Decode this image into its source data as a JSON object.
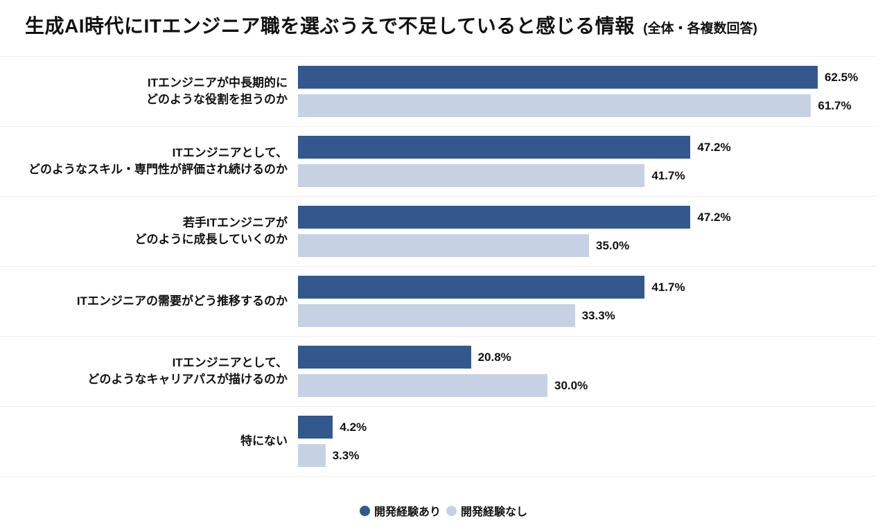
{
  "title": {
    "main": "生成AI時代にITエンジニア職を選ぶうえで不足していると感じる情報",
    "suffix": "(全体・各複数回答)"
  },
  "colors": {
    "series_dev_experience": "#32588E",
    "series_no_dev_experience": "#C6D2E4",
    "divider": "#ededed",
    "text": "#111111"
  },
  "legend": {
    "items": [
      {
        "label": "開発経験あり",
        "color": "#32588E"
      },
      {
        "label": "開発経験なし",
        "color": "#C6D2E4"
      }
    ]
  },
  "chart_data": {
    "type": "bar",
    "orientation": "horizontal",
    "unit": "%",
    "xlim": [
      0,
      70
    ],
    "grid": false,
    "legend_position": "bottom",
    "categories": [
      {
        "lines": [
          "ITエンジニアが中長期的に",
          "どのような役割を担うのか"
        ]
      },
      {
        "lines": [
          "ITエンジニアとして、",
          "どのようなスキル・専門性が評価され続けるのか"
        ]
      },
      {
        "lines": [
          "若手ITエンジニアが",
          "どのように成長していくのか"
        ]
      },
      {
        "lines": [
          "ITエンジニアの需要がどう推移するのか"
        ]
      },
      {
        "lines": [
          "ITエンジニアとして、",
          "どのようなキャリアパスが描けるのか"
        ]
      },
      {
        "lines": [
          "特にない"
        ]
      }
    ],
    "series": [
      {
        "name": "開発経験あり",
        "color": "#32588E",
        "values": [
          62.5,
          47.2,
          47.2,
          41.7,
          20.8,
          4.2
        ],
        "labels": [
          "62.5%",
          "47.2%",
          "47.2%",
          "41.7%",
          "20.8%",
          "4.2%"
        ]
      },
      {
        "name": "開発経験なし",
        "color": "#C6D2E4",
        "values": [
          61.7,
          41.7,
          35.0,
          33.3,
          30.0,
          3.3
        ],
        "labels": [
          "61.7%",
          "41.7%",
          "35.0%",
          "33.3%",
          "30.0%",
          "3.3%"
        ]
      }
    ]
  }
}
